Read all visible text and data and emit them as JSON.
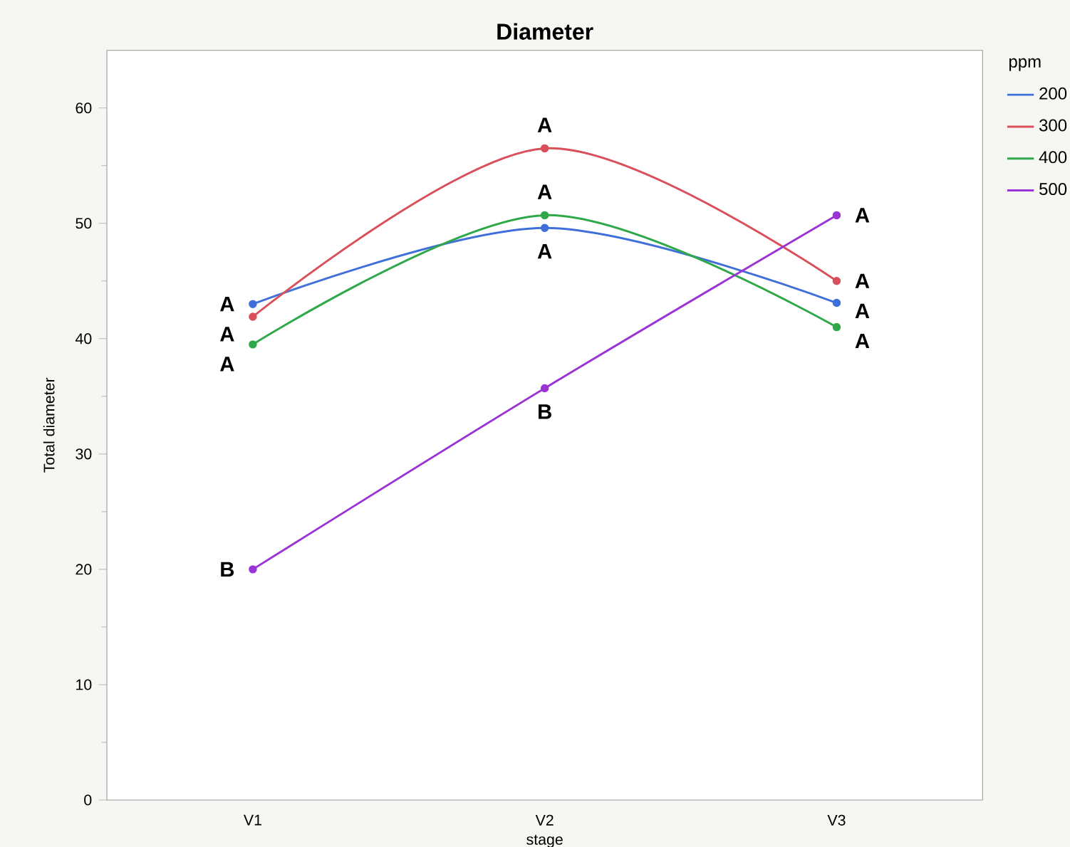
{
  "chart_data": {
    "type": "line",
    "title": "Diameter",
    "xlabel": "stage",
    "ylabel": "Total diameter",
    "legend_title": "ppm",
    "categories": [
      "V1",
      "V2",
      "V3"
    ],
    "series": [
      {
        "name": "200",
        "color": "#3f6fd8",
        "values": [
          43.0,
          49.6,
          43.1
        ]
      },
      {
        "name": "300",
        "color": "#d9505a",
        "values": [
          41.9,
          56.5,
          45.0
        ]
      },
      {
        "name": "400",
        "color": "#2fa84a",
        "values": [
          39.5,
          50.7,
          41.0
        ]
      },
      {
        "name": "500",
        "color": "#9b33d6",
        "values": [
          20.0,
          35.7,
          50.7
        ]
      }
    ],
    "ylim": [
      0,
      65
    ],
    "yticks": [
      0,
      10,
      20,
      30,
      40,
      50,
      60
    ],
    "grid": false,
    "legend": "right",
    "marker": "circle",
    "line_style": "solid",
    "annotations": [
      {
        "text": "A",
        "x": "V1",
        "y": 43.0
      },
      {
        "text": "A",
        "x": "V2",
        "y": 49.6
      },
      {
        "text": "A",
        "x": "V3",
        "y": 43.1
      },
      {
        "text": "A",
        "x": "V1",
        "y": 41.9
      },
      {
        "text": "A",
        "x": "V2",
        "y": 56.5
      },
      {
        "text": "A",
        "x": "V3",
        "y": 45.0
      },
      {
        "text": "A",
        "x": "V1",
        "y": 39.5
      },
      {
        "text": "A",
        "x": "V2",
        "y": 50.7
      },
      {
        "text": "A",
        "x": "V3",
        "y": 41.0
      },
      {
        "text": "B",
        "x": "V1",
        "y": 20.0
      },
      {
        "text": "B",
        "x": "V2",
        "y": 35.7
      },
      {
        "text": "A",
        "x": "V3",
        "y": 50.7
      }
    ]
  }
}
